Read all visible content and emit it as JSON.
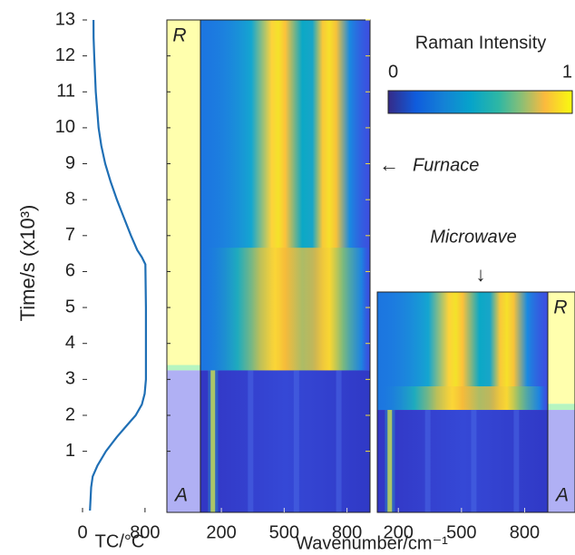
{
  "chart_data": [
    {
      "type": "line",
      "ylabel": "Time/s (x10³)",
      "xlabel": "TC/°C",
      "ylim": [
        -0.7,
        13
      ],
      "yticks": [
        1,
        2,
        3,
        4,
        5,
        6,
        7,
        8,
        9,
        10,
        11,
        12,
        13
      ],
      "xlim": [
        0,
        1080
      ],
      "xticks": [
        0,
        800
      ],
      "series": [
        {
          "color": "#1f6fb5",
          "x": [
            13,
            12.5,
            12,
            11,
            10,
            9.5,
            9,
            8.5,
            8,
            7.5,
            7,
            6.6,
            6.4,
            6.2,
            5,
            4,
            3,
            2.6,
            2.3,
            2,
            1.7,
            1.4,
            1,
            0.6,
            0.3,
            0,
            -0.65
          ],
          "values": [
            140,
            142,
            150,
            170,
            205,
            240,
            290,
            360,
            440,
            530,
            620,
            700,
            760,
            805,
            812,
            812,
            812,
            795,
            760,
            680,
            560,
            440,
            300,
            190,
            130,
            110,
            95
          ]
        }
      ]
    },
    {
      "type": "heatmap",
      "xlabel": "Wavenumber/cm⁻¹",
      "xlim": [
        100,
        910
      ],
      "xticks": [
        200,
        500,
        800
      ],
      "ylim": [
        -0.7,
        13
      ],
      "yticks": [
        1,
        2,
        3,
        4,
        5,
        6,
        7,
        8,
        9,
        10,
        11,
        12,
        13
      ],
      "annotation": "Furnace",
      "phases": [
        {
          "label": "R",
          "from": 3.4,
          "to": 13,
          "color": "#ffffad"
        },
        {
          "from": 3.25,
          "to": 3.4,
          "color": "#b6f5c0"
        },
        {
          "label": "A",
          "from": -0.7,
          "to": 3.25,
          "color": "#b0b0f4"
        }
      ]
    },
    {
      "type": "heatmap",
      "xlim": [
        100,
        910
      ],
      "xticks": [
        200,
        500,
        800
      ],
      "ylim": [
        -0.7,
        5.43
      ],
      "annotation": "Microwave",
      "phases": [
        {
          "label": "R",
          "from": 2.32,
          "to": 5.43,
          "color": "#ffffad"
        },
        {
          "from": 2.15,
          "to": 2.32,
          "color": "#b6f5c0"
        },
        {
          "label": "A",
          "from": -0.7,
          "to": 2.15,
          "color": "#b0b0f4"
        }
      ]
    }
  ],
  "colorbar": {
    "title": "Raman Intensity",
    "lim": [
      0,
      1
    ],
    "ticks": [
      0,
      1
    ]
  }
}
